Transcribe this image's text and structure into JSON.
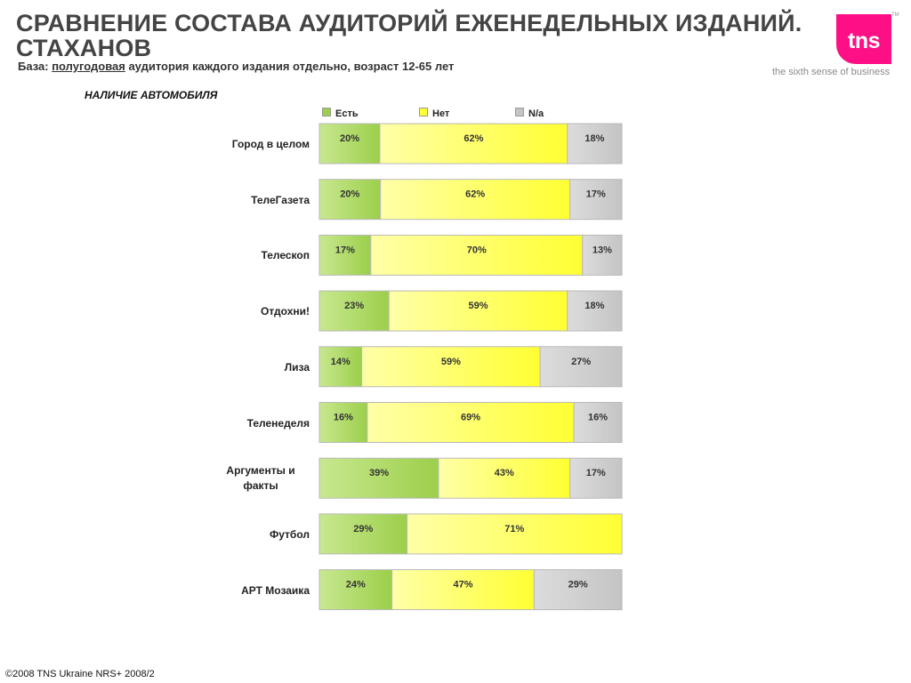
{
  "header": {
    "title": "СРАВНЕНИЕ СОСТАВА АУДИТОРИЙ ЕЖЕНЕДЕЛЬНЫХ ИЗДАНИЙ. СТАХАНОВ",
    "subtitle_prefix": "База: ",
    "subtitle_underlined": "полугодовая",
    "subtitle_rest": " аудитория каждого издания отдельно, возраст 12-65 лет"
  },
  "logo": {
    "text": "tns",
    "tagline": "the sixth sense of business",
    "tm": "TM"
  },
  "section_title": "НАЛИЧИЕ АВТОМОБИЛЯ",
  "footer": "©2008 TNS Ukraine  NRS+ 2008/2",
  "colors": {
    "yes": "#9ccf4a",
    "no": "#ffff33",
    "na": "#c4c4c4"
  },
  "chart_data": {
    "type": "bar",
    "orientation": "horizontal",
    "stacked": true,
    "percent": true,
    "categories": [
      "Город в целом",
      "ТелеГазета",
      "Телескоп",
      "Отдохни!",
      "Лиза",
      "Теленеделя",
      "Аргументы и факты",
      "Футбол",
      "АРТ Мозаика"
    ],
    "series": [
      {
        "name": "Есть",
        "values": [
          20,
          20,
          17,
          23,
          14,
          16,
          39,
          29,
          24
        ],
        "labels": [
          "20%",
          "20%",
          "17%",
          "23%",
          "14%",
          "16%",
          "39%",
          "29%",
          "24%"
        ]
      },
      {
        "name": "Нет",
        "values": [
          62,
          62,
          70,
          59,
          59,
          69,
          43,
          71,
          47
        ],
        "labels": [
          "62%",
          "62%",
          "70%",
          "59%",
          "59%",
          "69%",
          "43%",
          "71%",
          "47%"
        ]
      },
      {
        "name": "N/a",
        "values": [
          18,
          17,
          13,
          18,
          27,
          16,
          17,
          0,
          29
        ],
        "labels": [
          "18%",
          "17%",
          "13%",
          "18%",
          "27%",
          "16%",
          "17%",
          "",
          "29%"
        ]
      }
    ],
    "legend_position": "top",
    "grid": false
  }
}
